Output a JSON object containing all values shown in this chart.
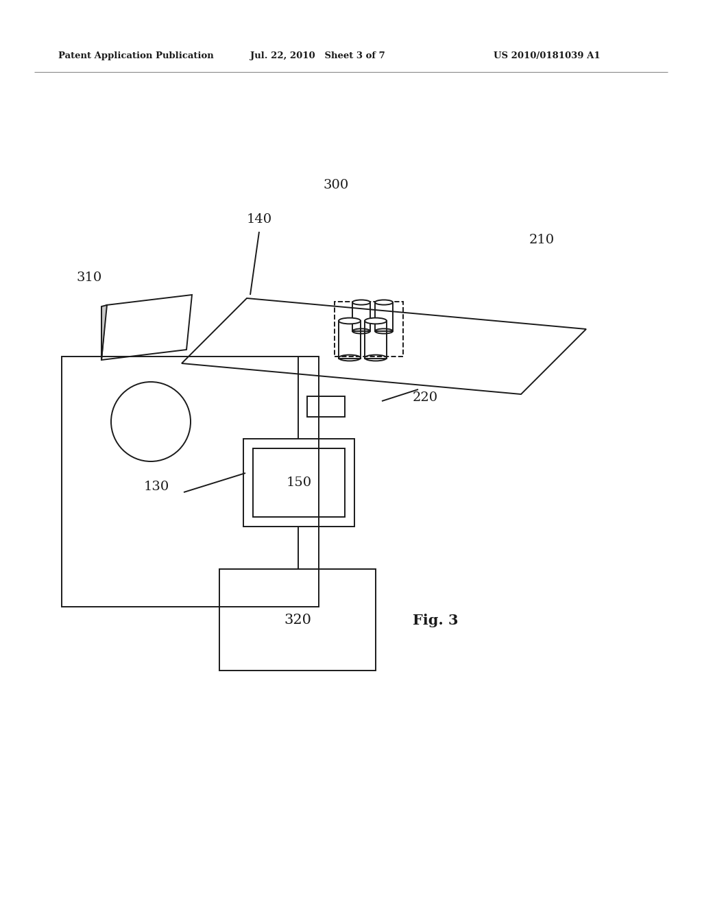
{
  "bg_color": "#ffffff",
  "line_color": "#1a1a1a",
  "text_color": "#1a1a1a",
  "header_left": "Patent Application Publication",
  "header_mid": "Jul. 22, 2010   Sheet 3 of 7",
  "header_right": "US 2010/0181039 A1",
  "fig_label": "Fig. 3"
}
